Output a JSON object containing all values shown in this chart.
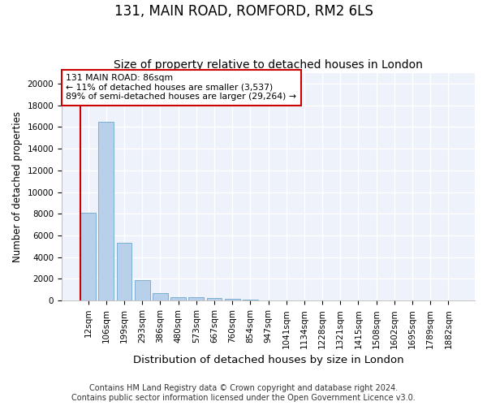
{
  "title": "131, MAIN ROAD, ROMFORD, RM2 6LS",
  "subtitle": "Size of property relative to detached houses in London",
  "xlabel": "Distribution of detached houses by size in London",
  "ylabel": "Number of detached properties",
  "categories": [
    "12sqm",
    "106sqm",
    "199sqm",
    "293sqm",
    "386sqm",
    "480sqm",
    "573sqm",
    "667sqm",
    "760sqm",
    "854sqm",
    "947sqm",
    "1041sqm",
    "1134sqm",
    "1228sqm",
    "1321sqm",
    "1415sqm",
    "1508sqm",
    "1602sqm",
    "1695sqm",
    "1789sqm",
    "1882sqm"
  ],
  "values": [
    8100,
    16500,
    5300,
    1850,
    700,
    350,
    280,
    220,
    180,
    120,
    0,
    0,
    0,
    0,
    0,
    0,
    0,
    0,
    0,
    0,
    0
  ],
  "bar_color": "#b8d0ea",
  "bar_edge_color": "#7bafd4",
  "background_color": "#eef2fb",
  "grid_color": "#ffffff",
  "annotation_line1": "131 MAIN ROAD: 86sqm",
  "annotation_line2": "← 11% of detached houses are smaller (3,537)",
  "annotation_line3": "89% of semi-detached houses are larger (29,264) →",
  "annotation_box_color": "#ffffff",
  "annotation_box_edge": "#cc0000",
  "vline_color": "#cc0000",
  "vline_pos": -0.42,
  "ylim": [
    0,
    21000
  ],
  "yticks": [
    0,
    2000,
    4000,
    6000,
    8000,
    10000,
    12000,
    14000,
    16000,
    18000,
    20000
  ],
  "footer1": "Contains HM Land Registry data © Crown copyright and database right 2024.",
  "footer2": "Contains public sector information licensed under the Open Government Licence v3.0.",
  "title_fontsize": 12,
  "subtitle_fontsize": 10,
  "xlabel_fontsize": 9.5,
  "ylabel_fontsize": 8.5,
  "tick_fontsize": 7.5,
  "footer_fontsize": 7
}
